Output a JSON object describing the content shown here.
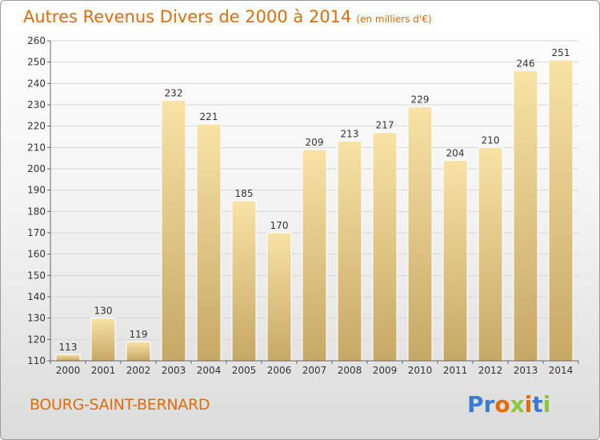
{
  "title": {
    "main": "Autres Revenus Divers de 2000 à 2014",
    "unit": "(en milliers d'€)"
  },
  "commune": "BOURG-SAINT-BERNARD",
  "brand": {
    "name": "Proxiti",
    "letters": [
      {
        "ch": "P",
        "color": "#3a7bd5"
      },
      {
        "ch": "r",
        "color": "#3a7bd5"
      },
      {
        "ch": "o",
        "color": "#e36c0a"
      },
      {
        "ch": "x",
        "color": "#8cc63f"
      },
      {
        "ch": "i",
        "color": "#e36c0a"
      },
      {
        "ch": "t",
        "color": "#3a7bd5"
      },
      {
        "ch": "i",
        "color": "#8cc63f"
      }
    ]
  },
  "colors": {
    "title": "#e36c0a",
    "bar_light": "#f7dd9b",
    "bar_dark": "#c9ac69",
    "grid": "#d6d6d6",
    "text": "#333333"
  },
  "chart_data": {
    "type": "bar",
    "categories": [
      "2000",
      "2001",
      "2002",
      "2003",
      "2004",
      "2005",
      "2006",
      "2007",
      "2008",
      "2009",
      "2010",
      "2011",
      "2012",
      "2013",
      "2014"
    ],
    "values": [
      113,
      130,
      119,
      232,
      221,
      185,
      170,
      209,
      213,
      217,
      229,
      204,
      210,
      246,
      251
    ],
    "ylim": [
      110,
      260
    ],
    "yticks": [
      110,
      120,
      130,
      140,
      150,
      160,
      170,
      180,
      190,
      200,
      210,
      220,
      230,
      240,
      250,
      260
    ],
    "grid": true,
    "data_labels": true
  }
}
